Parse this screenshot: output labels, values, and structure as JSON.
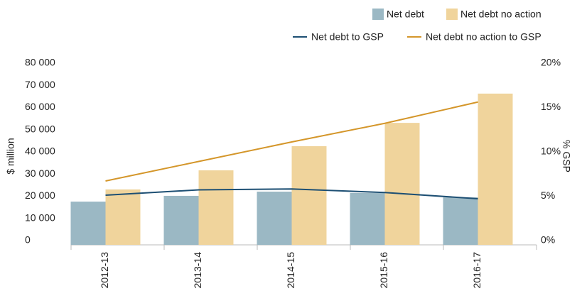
{
  "chart_data": {
    "type": "bar",
    "categories": [
      "2012-13",
      "2013-14",
      "2014-15",
      "2015-16",
      "2016-17"
    ],
    "ylabel": "$ million",
    "y2label": "% GSP",
    "ylim": [
      0,
      80000
    ],
    "yticks": [
      0,
      {
        "value": 10000,
        "label": "10 000"
      },
      {
        "value": 20000,
        "label": "20 000"
      },
      {
        "value": 30000,
        "label": "30 000"
      },
      {
        "value": 40000,
        "label": "40 000"
      },
      {
        "value": 50000,
        "label": "50 000"
      },
      {
        "value": 60000,
        "label": "60 000"
      },
      {
        "value": 70000,
        "label": "70 000"
      },
      {
        "value": 80000,
        "label": "80 000"
      }
    ],
    "y2lim": [
      0,
      20
    ],
    "y2ticks": [
      {
        "value": 0,
        "label": "0%"
      },
      {
        "value": 5,
        "label": "5%"
      },
      {
        "value": 10,
        "label": "10%"
      },
      {
        "value": 15,
        "label": "15%"
      },
      {
        "value": 20,
        "label": "20%"
      }
    ],
    "legend": "top-right",
    "series": [
      {
        "name": "Net debt",
        "type": "bar",
        "color": "#9bb8c4",
        "values": [
          19500,
          22100,
          24000,
          23400,
          21400
        ]
      },
      {
        "name": "Net debt no action",
        "type": "bar",
        "color": "#f0d49c",
        "values": [
          25000,
          33600,
          44500,
          55000,
          68200
        ]
      },
      {
        "name": "Net debt to GSP",
        "type": "line",
        "axis": "y2",
        "color": "#1d4f73",
        "values": [
          5.6,
          6.2,
          6.3,
          5.9,
          5.2
        ]
      },
      {
        "name": "Net debt no action to GSP",
        "type": "line",
        "axis": "y2",
        "color": "#d4962a",
        "values": [
          7.2,
          9.4,
          11.6,
          13.7,
          16.1
        ]
      }
    ]
  }
}
